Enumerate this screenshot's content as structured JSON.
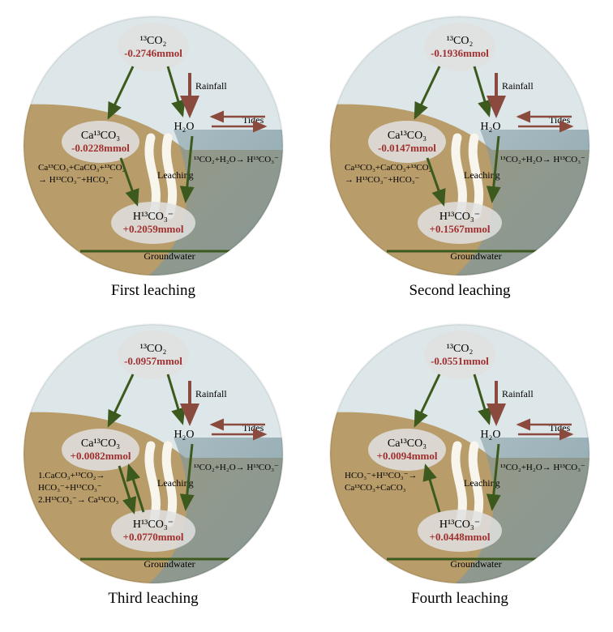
{
  "colors": {
    "sky": "#dde6e8",
    "soil": "#b89c6a",
    "water": "#7a97a0",
    "bubble": "#e0e0e0",
    "value": "#a03030",
    "arrowGreen": "#3d5a1e",
    "arrowBrown": "#8a4a3e",
    "leachWhite": "#f8f5ed"
  },
  "labels": {
    "rainfall": "Rainfall",
    "tides": "Tides",
    "leaching": "Leaching",
    "groundwater": "Groundwater",
    "h2o": "H₂O",
    "co2": "¹³CO₂",
    "caco3": "Ca¹³CO₃",
    "hco3": "H¹³CO₃⁻",
    "rightEq": "¹³CO₂+H₂O→ H¹³CO₃⁻"
  },
  "panels": [
    {
      "caption": "First leaching",
      "co2": "-0.2746mmol",
      "caco3": "-0.0228mmol",
      "hco3": "+0.2059mmol",
      "leftEqLines": [
        "Ca¹³CO₃+CaCO₃+¹³CO₂",
        "→ H¹³CO₃⁻+HCO₃⁻"
      ],
      "caco3ArrowDir": "down",
      "hco3Extra": null
    },
    {
      "caption": "Second leaching",
      "co2": "-0.1936mmol",
      "caco3": "-0.0147mmol",
      "hco3": "+0.1567mmol",
      "leftEqLines": [
        "Ca¹³CO₃+CaCO₃+¹³CO₂",
        "→ H¹³CO₃⁻+HCO₃⁻"
      ],
      "caco3ArrowDir": "down",
      "hco3Extra": null
    },
    {
      "caption": "Third leaching",
      "co2": "-0.0957mmol",
      "caco3": "+0.0082mmol",
      "hco3": "+0.0770mmol",
      "leftEqLines": [
        "1.CaCO₃+¹³CO₂→",
        "HCO₃⁻+H¹³CO₃⁻",
        "2.H¹³CO₃⁻→ Ca¹³CO₃"
      ],
      "caco3ArrowDir": "both",
      "hco3Extra": null
    },
    {
      "caption": "Fourth leaching",
      "co2": "-0.0551mmol",
      "caco3": "+0.0094mmol",
      "hco3": "+0.0448mmol",
      "leftEqLines": [
        "HCO₃⁻+H¹³CO₃⁻→",
        "Ca¹³CO₃+CaCO₃"
      ],
      "caco3ArrowDir": "up",
      "hco3Extra": null
    }
  ]
}
